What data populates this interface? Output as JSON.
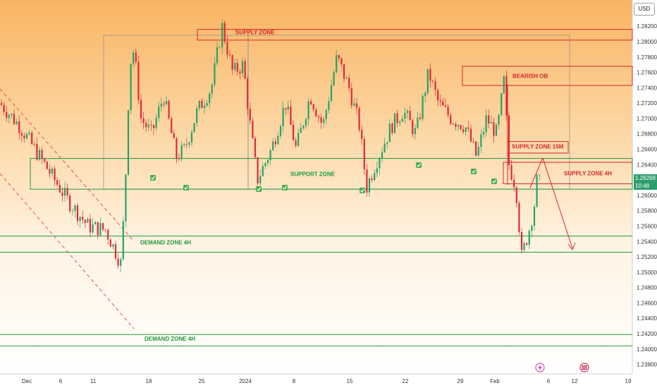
{
  "ui": {
    "currency": "USD",
    "last_price": "1.26268",
    "countdown": "10:48"
  },
  "colors": {
    "bull": "#26a269",
    "bear": "#e0283a",
    "supply_zone": "#d6262c",
    "demand_zone": "#1e9a3c",
    "box": "#8a8a8a",
    "trend": "#e05050"
  },
  "chart_data": {
    "type": "candlestick",
    "y_axis": {
      "range": [
        1.2375,
        1.2845
      ],
      "ticks": [
        "1.28200",
        "1.28000",
        "1.27800",
        "1.27600",
        "1.27400",
        "1.27200",
        "1.27000",
        "1.26800",
        "1.26600",
        "1.26400",
        "1.26200",
        "1.26000",
        "1.25800",
        "1.25600",
        "1.25400",
        "1.25200",
        "1.25000",
        "1.24800",
        "1.24600",
        "1.24400",
        "1.24200",
        "1.24000",
        "1.23800"
      ],
      "tick_values": [
        1.282,
        1.28,
        1.278,
        1.276,
        1.274,
        1.272,
        1.27,
        1.268,
        1.266,
        1.264,
        1.262,
        1.26,
        1.258,
        1.256,
        1.254,
        1.252,
        1.25,
        1.248,
        1.246,
        1.244,
        1.242,
        1.24,
        1.238
      ]
    },
    "x_axis": {
      "labels": [
        "Dec",
        "6",
        "11",
        "18",
        "25",
        "2024",
        "8",
        "15",
        "22",
        "29",
        "Feb",
        "6",
        "12",
        "19"
      ]
    },
    "price_path": [
      [
        0,
        1.272
      ],
      [
        28,
        1.269
      ],
      [
        60,
        1.2645
      ],
      [
        95,
        1.2595
      ],
      [
        125,
        1.256
      ],
      [
        150,
        1.2555
      ],
      [
        172,
        1.251
      ],
      [
        178,
        1.262
      ],
      [
        184,
        1.277
      ],
      [
        190,
        1.279
      ],
      [
        200,
        1.27
      ],
      [
        215,
        1.268
      ],
      [
        232,
        1.273
      ],
      [
        250,
        1.265
      ],
      [
        262,
        1.266
      ],
      [
        280,
        1.271
      ],
      [
        300,
        1.274
      ],
      [
        315,
        1.282
      ],
      [
        330,
        1.276
      ],
      [
        345,
        1.277
      ],
      [
        355,
        1.269
      ],
      [
        365,
        1.262
      ],
      [
        385,
        1.266
      ],
      [
        405,
        1.272
      ],
      [
        420,
        1.266
      ],
      [
        440,
        1.273
      ],
      [
        458,
        1.269
      ],
      [
        478,
        1.278
      ],
      [
        495,
        1.274
      ],
      [
        510,
        1.269
      ],
      [
        520,
        1.261
      ],
      [
        532,
        1.264
      ],
      [
        555,
        1.269
      ],
      [
        572,
        1.271
      ],
      [
        590,
        1.268
      ],
      [
        608,
        1.276
      ],
      [
        622,
        1.272
      ],
      [
        640,
        1.27
      ],
      [
        660,
        1.269
      ],
      [
        676,
        1.265
      ],
      [
        690,
        1.27
      ],
      [
        705,
        1.268
      ],
      [
        715,
        1.275
      ],
      [
        722,
        1.264
      ],
      [
        732,
        1.261
      ],
      [
        740,
        1.252
      ],
      [
        752,
        1.256
      ],
      [
        766,
        1.2626
      ]
    ],
    "zones": [
      {
        "label": "SUPPLY ZONE",
        "top": 1.2816,
        "bottom": 1.2802
      },
      {
        "label": "BEARISH OB",
        "top": 1.2768,
        "bottom": 1.2743
      },
      {
        "label": "SUPPLY ZONE 15M",
        "top": 1.267,
        "bottom": 1.2655
      },
      {
        "label": "SUPPLY ZONE 4H",
        "top": 1.2643,
        "bottom": 1.2615
      },
      {
        "label": "SUPPORT ZONE",
        "top": 1.2648,
        "bottom": 1.2608
      },
      {
        "label": "DEMAND ZONE 4H",
        "top": 1.2547,
        "bottom": 1.2526
      },
      {
        "label": "DEMAND ZONE 4H",
        "top": 1.2419,
        "bottom": 1.2404
      }
    ],
    "annotations": [
      "SUPPLY ZONE",
      "BEARISH OB",
      "SUPPLY ZONE 15M",
      "SUPPLY ZONE 4H",
      "SUPPORT ZONE",
      "DEMAND ZONE 4H",
      "DEMAND ZONE 4H"
    ]
  }
}
